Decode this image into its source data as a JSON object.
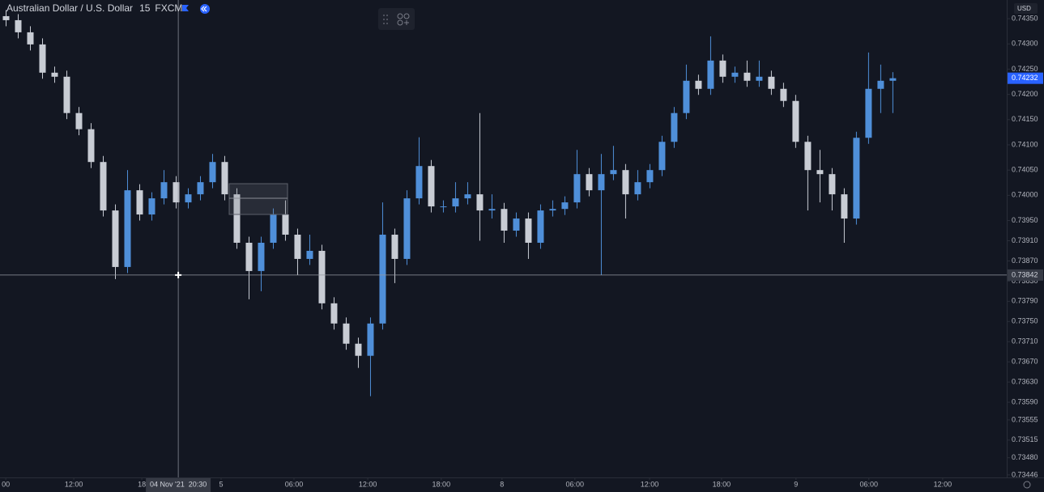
{
  "header": {
    "symbol": "Australian Dollar / U.S. Dollar",
    "interval": "15",
    "source": "FXCM"
  },
  "chart_data": {
    "type": "candlestick",
    "x": [
      2,
      6,
      10,
      14,
      18,
      22,
      26,
      30,
      34,
      38,
      42,
      46,
      50,
      54,
      58,
      62,
      66,
      70,
      74,
      78,
      82,
      86,
      90,
      94,
      98,
      102,
      106,
      110,
      114,
      118,
      122,
      126,
      130,
      134,
      138,
      142,
      146,
      150,
      154,
      158,
      162,
      166,
      170,
      174,
      178,
      182,
      186,
      190,
      194,
      198,
      202,
      206,
      210,
      214,
      218,
      222,
      226,
      230,
      234,
      238,
      242,
      246,
      250,
      254,
      258,
      262,
      266,
      270,
      274,
      278,
      282,
      286,
      290,
      294
    ],
    "open": [
      0.74355,
      0.74347,
      0.74323,
      0.74299,
      0.74243,
      0.74235,
      0.74163,
      0.74131,
      0.74066,
      0.7397,
      0.73858,
      0.7401,
      0.73962,
      0.73994,
      0.74026,
      0.73986,
      0.74002,
      0.74026,
      0.74066,
      0.74002,
      0.73906,
      0.7385,
      0.73906,
      0.73962,
      0.73922,
      0.73874,
      0.7389,
      0.73786,
      0.73746,
      0.73706,
      0.73682,
      0.73746,
      0.73922,
      0.73874,
      0.73994,
      0.74058,
      0.73978,
      0.73978,
      0.73994,
      0.74002,
      0.7397,
      0.73973,
      0.7393,
      0.73954,
      0.73906,
      0.7397,
      0.73973,
      0.73986,
      0.74042,
      0.7401,
      0.74042,
      0.7405,
      0.74002,
      0.74026,
      0.7405,
      0.74106,
      0.74163,
      0.74227,
      0.74211,
      0.74267,
      0.74235,
      0.74243,
      0.74227,
      0.74235,
      0.74211,
      0.74187,
      0.74106,
      0.7405,
      0.74042,
      0.74002,
      0.73954,
      0.74114,
      0.74211,
      0.74227
    ],
    "high": [
      0.74367,
      0.74359,
      0.74335,
      0.74311,
      0.74255,
      0.74247,
      0.74175,
      0.74143,
      0.74078,
      0.73982,
      0.7405,
      0.74022,
      0.74006,
      0.7405,
      0.74038,
      0.74014,
      0.74038,
      0.74082,
      0.74078,
      0.74014,
      0.73918,
      0.73918,
      0.73974,
      0.7399,
      0.73934,
      0.73922,
      0.73902,
      0.73798,
      0.73758,
      0.73718,
      0.73758,
      0.73986,
      0.73934,
      0.7401,
      0.74115,
      0.7407,
      0.7399,
      0.74026,
      0.74026,
      0.74163,
      0.74002,
      0.73985,
      0.73966,
      0.73966,
      0.73982,
      0.7399,
      0.73998,
      0.7409,
      0.74054,
      0.74082,
      0.74098,
      0.74062,
      0.7405,
      0.74062,
      0.74118,
      0.74175,
      0.74259,
      0.74239,
      0.74315,
      0.74279,
      0.74255,
      0.74267,
      0.74267,
      0.74247,
      0.74223,
      0.74199,
      0.74118,
      0.7409,
      0.74054,
      0.74014,
      0.74126,
      0.74283,
      0.74259,
      0.74244
    ],
    "low": [
      0.74335,
      0.74311,
      0.74287,
      0.74231,
      0.74223,
      0.74151,
      0.74119,
      0.74054,
      0.73958,
      0.73834,
      0.73846,
      0.7395,
      0.7395,
      0.73982,
      0.73974,
      0.73974,
      0.7399,
      0.74014,
      0.7399,
      0.73894,
      0.73794,
      0.7381,
      0.73894,
      0.7391,
      0.73842,
      0.73862,
      0.73774,
      0.73734,
      0.73694,
      0.73658,
      0.73602,
      0.73734,
      0.73826,
      0.73862,
      0.73982,
      0.73966,
      0.73966,
      0.73966,
      0.73982,
      0.7391,
      0.73954,
      0.73906,
      0.73918,
      0.73874,
      0.73894,
      0.73958,
      0.73961,
      0.73974,
      0.73998,
      0.73842,
      0.7403,
      0.73954,
      0.7399,
      0.74014,
      0.74038,
      0.74094,
      0.74151,
      0.74199,
      0.74199,
      0.74223,
      0.74223,
      0.74215,
      0.74215,
      0.74199,
      0.74175,
      0.74094,
      0.7397,
      0.73986,
      0.7397,
      0.73906,
      0.73942,
      0.74102,
      0.74163,
      0.74163
    ],
    "close": [
      0.74347,
      0.74323,
      0.74299,
      0.74243,
      0.74235,
      0.74163,
      0.74131,
      0.74066,
      0.7397,
      0.73858,
      0.7401,
      0.73962,
      0.73994,
      0.74026,
      0.73986,
      0.74002,
      0.74026,
      0.74066,
      0.74002,
      0.73906,
      0.7385,
      0.73906,
      0.73962,
      0.73922,
      0.73874,
      0.7389,
      0.73786,
      0.73746,
      0.73706,
      0.73682,
      0.73746,
      0.73922,
      0.73874,
      0.73994,
      0.74058,
      0.73978,
      0.73978,
      0.73994,
      0.74002,
      0.7397,
      0.73973,
      0.7393,
      0.73954,
      0.73906,
      0.7397,
      0.73973,
      0.73986,
      0.74042,
      0.7401,
      0.74042,
      0.7405,
      0.74002,
      0.74026,
      0.7405,
      0.74106,
      0.74163,
      0.74227,
      0.74211,
      0.74267,
      0.74235,
      0.74243,
      0.74227,
      0.74235,
      0.74211,
      0.74187,
      0.74106,
      0.7405,
      0.74042,
      0.74002,
      0.73954,
      0.74114,
      0.74211,
      0.74227,
      0.74232
    ],
    "up_color": "#4f8fd9",
    "down_color": "#c8ccd4",
    "xlim": [
      0,
      331.5
    ],
    "ylim": [
      0.73441,
      0.74387
    ],
    "xticks": [
      {
        "value": 1.9,
        "label": "00"
      },
      {
        "value": 24.3,
        "label": "12:00"
      },
      {
        "value": 46.7,
        "label": "18"
      },
      {
        "value": 72.8,
        "label": "5"
      },
      {
        "value": 96.8,
        "label": "06:00"
      },
      {
        "value": 121.1,
        "label": "12:00"
      },
      {
        "value": 145.3,
        "label": "18:00"
      },
      {
        "value": 165.3,
        "label": "8"
      },
      {
        "value": 189.3,
        "label": "06:00"
      },
      {
        "value": 213.9,
        "label": "12:00"
      },
      {
        "value": 237.6,
        "label": "18:00"
      },
      {
        "value": 262.1,
        "label": "9"
      },
      {
        "value": 286.1,
        "label": "06:00"
      },
      {
        "value": 310.4,
        "label": "12:00"
      }
    ],
    "yticks": [
      {
        "value": 0.7435,
        "label": "0.74350"
      },
      {
        "value": 0.743,
        "label": "0.74300"
      },
      {
        "value": 0.7425,
        "label": "0.74250"
      },
      {
        "value": 0.742,
        "label": "0.74200"
      },
      {
        "value": 0.7415,
        "label": "0.74150"
      },
      {
        "value": 0.741,
        "label": "0.74100"
      },
      {
        "value": 0.7405,
        "label": "0.74050"
      },
      {
        "value": 0.74,
        "label": "0.74000"
      },
      {
        "value": 0.7395,
        "label": "0.73950"
      },
      {
        "value": 0.7391,
        "label": "0.73910"
      },
      {
        "value": 0.7387,
        "label": "0.73870"
      },
      {
        "value": 0.7383,
        "label": "0.73830"
      },
      {
        "value": 0.7379,
        "label": "0.73790"
      },
      {
        "value": 0.7375,
        "label": "0.73750"
      },
      {
        "value": 0.7371,
        "label": "0.73710"
      },
      {
        "value": 0.7367,
        "label": "0.73670"
      },
      {
        "value": 0.7363,
        "label": "0.73630"
      },
      {
        "value": 0.7359,
        "label": "0.73590"
      },
      0.73555,
      0.73515,
      {
        "value": 0.7348,
        "label": "0.73480"
      },
      0.73446
    ],
    "currency": "USD",
    "last_price": 0.74232,
    "crosshair": {
      "x": 58.7,
      "y": 0.73842,
      "x_label": "04 Nov '21  20:30"
    }
  }
}
